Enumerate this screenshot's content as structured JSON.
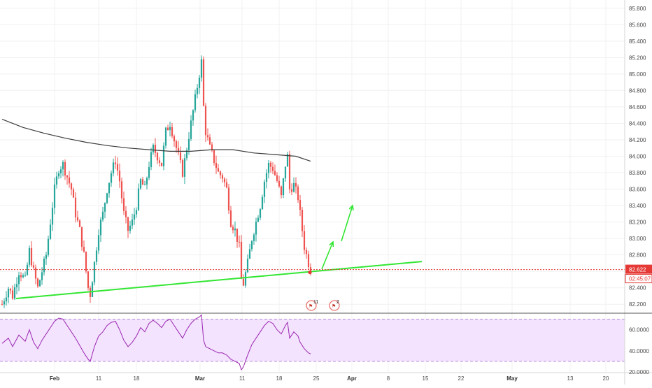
{
  "colors": {
    "up": "#26a69a",
    "down": "#ef5350",
    "ma_line": "#3c3c3c",
    "trendline": "#33e633",
    "arrow": "#33e633",
    "price_line": "#e53935",
    "rsi_line": "#9c27b0",
    "rsi_band": "#f3e3ff",
    "grid": "#f1f1f1"
  },
  "price_scale": {
    "ticks": [
      "85.800",
      "85.600",
      "85.400",
      "85.200",
      "85.000",
      "84.800",
      "84.600",
      "84.400",
      "84.200",
      "84.000",
      "83.800",
      "83.600",
      "83.400",
      "83.200",
      "83.000",
      "82.800",
      "82.600",
      "82.400",
      "82.200"
    ],
    "current_price": "82.622",
    "countdown": "02:45:07"
  },
  "rsi_scale": {
    "ticks": [
      "60.0000",
      "40.0000",
      "20.0000"
    ]
  },
  "time_axis": [
    {
      "label": "Feb",
      "major": true
    },
    {
      "label": "11",
      "major": false
    },
    {
      "label": "18",
      "major": false
    },
    {
      "label": "Mar",
      "major": true
    },
    {
      "label": "11",
      "major": false
    },
    {
      "label": "18",
      "major": false
    },
    {
      "label": "25",
      "major": false
    },
    {
      "label": "Apr",
      "major": true
    },
    {
      "label": "8",
      "major": false
    },
    {
      "label": "15",
      "major": false
    },
    {
      "label": "22",
      "major": false
    },
    {
      "label": "May",
      "major": true
    },
    {
      "label": "13",
      "major": false
    },
    {
      "label": "20",
      "major": false
    }
  ],
  "events": [
    {
      "icon": "flag-event-icon",
      "count": "11"
    },
    {
      "icon": "flag-event-icon",
      "count": "2"
    }
  ],
  "chart_data": [
    {
      "type": "candlestick",
      "ylim": [
        82.1,
        85.9
      ],
      "grid": true,
      "price_path": [
        [
          0,
          82.2
        ],
        [
          3,
          82.4
        ],
        [
          5,
          82.3
        ],
        [
          8,
          82.6
        ],
        [
          11,
          82.5
        ],
        [
          13,
          82.85
        ],
        [
          15,
          82.6
        ],
        [
          17,
          82.4
        ],
        [
          19,
          82.6
        ],
        [
          21,
          82.8
        ],
        [
          23,
          83.2
        ],
        [
          25,
          83.6
        ],
        [
          27,
          83.85
        ],
        [
          29,
          83.9
        ],
        [
          31,
          83.75
        ],
        [
          33,
          83.6
        ],
        [
          35,
          83.3
        ],
        [
          37,
          83.1
        ],
        [
          39,
          82.8
        ],
        [
          41,
          82.4
        ],
        [
          42,
          82.32
        ],
        [
          44,
          82.7
        ],
        [
          46,
          83.1
        ],
        [
          48,
          83.3
        ],
        [
          50,
          83.6
        ],
        [
          52,
          83.8
        ],
        [
          54,
          83.95
        ],
        [
          56,
          83.7
        ],
        [
          58,
          83.3
        ],
        [
          60,
          83.1
        ],
        [
          62,
          83.2
        ],
        [
          64,
          83.4
        ],
        [
          66,
          83.7
        ],
        [
          68,
          83.6
        ],
        [
          70,
          83.9
        ],
        [
          72,
          84.1
        ],
        [
          74,
          84.0
        ],
        [
          76,
          83.9
        ],
        [
          78,
          84.3
        ],
        [
          80,
          84.4
        ],
        [
          82,
          84.2
        ],
        [
          84,
          84.0
        ],
        [
          86,
          83.8
        ],
        [
          88,
          84.1
        ],
        [
          90,
          84.4
        ],
        [
          92,
          84.7
        ],
        [
          94,
          85.0
        ],
        [
          95,
          85.15
        ],
        [
          96,
          84.6
        ],
        [
          97,
          84.3
        ],
        [
          99,
          84.1
        ],
        [
          101,
          83.95
        ],
        [
          103,
          83.8
        ],
        [
          105,
          83.75
        ],
        [
          107,
          83.6
        ],
        [
          109,
          83.2
        ],
        [
          111,
          83.1
        ],
        [
          113,
          82.9
        ],
        [
          114,
          82.5
        ],
        [
          115,
          82.45
        ],
        [
          117,
          82.7
        ],
        [
          119,
          83.0
        ],
        [
          121,
          83.2
        ],
        [
          123,
          83.4
        ],
        [
          125,
          83.7
        ],
        [
          127,
          83.9
        ],
        [
          129,
          83.85
        ],
        [
          131,
          83.7
        ],
        [
          133,
          83.5
        ],
        [
          135,
          83.9
        ],
        [
          136,
          84.0
        ],
        [
          137,
          83.6
        ],
        [
          139,
          83.65
        ],
        [
          141,
          83.5
        ],
        [
          142,
          83.3
        ],
        [
          144,
          82.9
        ],
        [
          146,
          82.7
        ],
        [
          147,
          82.62
        ]
      ]
    },
    {
      "type": "line",
      "name": "",
      "x": [
        0,
        10,
        20,
        30,
        40,
        50,
        60,
        70,
        80,
        90,
        100,
        110,
        120,
        130,
        140,
        147
      ],
      "y": [
        84.45,
        84.35,
        84.28,
        84.22,
        84.17,
        84.13,
        84.1,
        84.08,
        84.06,
        84.06,
        84.08,
        84.08,
        84.04,
        84.02,
        84.0,
        83.94
      ]
    },
    {
      "type": "line",
      "name": "trendline",
      "x": [
        0,
        200
      ],
      "y": [
        82.27,
        82.72
      ]
    },
    {
      "type": "line",
      "name": "rsi",
      "ylim": [
        20,
        75
      ],
      "bands": [
        70,
        30
      ],
      "x": [
        0,
        3,
        5,
        8,
        11,
        13,
        15,
        17,
        19,
        21,
        23,
        25,
        27,
        29,
        31,
        33,
        35,
        37,
        39,
        41,
        42,
        44,
        46,
        48,
        50,
        52,
        54,
        56,
        58,
        60,
        62,
        64,
        66,
        68,
        70,
        72,
        74,
        76,
        78,
        80,
        82,
        84,
        86,
        88,
        90,
        92,
        94,
        95,
        96,
        97,
        99,
        101,
        103,
        105,
        107,
        109,
        111,
        113,
        114,
        115,
        117,
        119,
        121,
        123,
        125,
        127,
        129,
        131,
        133,
        135,
        136,
        137,
        139,
        141,
        142,
        144,
        146,
        147
      ],
      "y": [
        47,
        52,
        44,
        55,
        49,
        60,
        48,
        42,
        50,
        56,
        62,
        68,
        71,
        70,
        64,
        58,
        52,
        45,
        38,
        32,
        30,
        44,
        54,
        58,
        64,
        67,
        68,
        60,
        50,
        44,
        48,
        54,
        62,
        58,
        66,
        69,
        66,
        62,
        68,
        70,
        64,
        58,
        52,
        60,
        66,
        70,
        72,
        74,
        50,
        44,
        42,
        40,
        38,
        38,
        36,
        32,
        30,
        28,
        22,
        25,
        36,
        46,
        52,
        58,
        64,
        68,
        66,
        60,
        56,
        64,
        67,
        52,
        58,
        54,
        48,
        42,
        38,
        37
      ]
    }
  ]
}
